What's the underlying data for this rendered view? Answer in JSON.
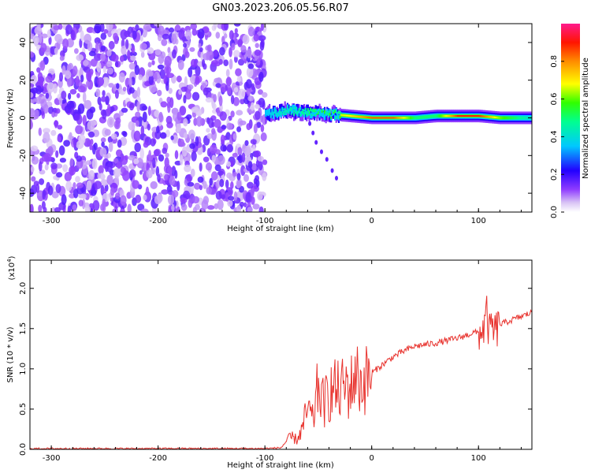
{
  "title": "GN03.2023.206.05.56.R07",
  "chart_data": [
    {
      "type": "heatmap",
      "title": "",
      "xlabel": "Height of straight line (km)",
      "ylabel": "Frequency (Hz)",
      "xlim": [
        -320,
        150
      ],
      "ylim": [
        -50,
        50
      ],
      "xticks": [
        "-300",
        "-200",
        "-100",
        "0",
        "100"
      ],
      "yticks": [
        "-40",
        "-20",
        "0",
        "20",
        "40"
      ],
      "noise_region_x": [
        -320,
        -100
      ],
      "signal_ridge": {
        "x": [
          -100,
          -80,
          -60,
          -40,
          -20,
          0,
          20,
          40,
          60,
          80,
          100,
          120,
          150
        ],
        "frequency_hz": [
          2,
          4,
          3,
          2,
          1,
          0,
          0,
          0,
          1,
          1,
          1,
          0,
          0
        ],
        "normalized_amplitude": [
          0.35,
          0.45,
          0.5,
          0.6,
          0.7,
          0.85,
          0.85,
          0.5,
          0.5,
          0.9,
          0.9,
          0.6,
          0.4
        ]
      },
      "colorbar": {
        "label": "Normalized spectral amplitude",
        "range": [
          0,
          1
        ],
        "ticks": [
          "0.0",
          "0.2",
          "0.4",
          "0.6",
          "0.8"
        ],
        "colormap": [
          "#ffffff",
          "#b58cf0",
          "#6a00ff",
          "#0000ff",
          "#00e5ff",
          "#00ff40",
          "#ffff00",
          "#ff8000",
          "#ff0000",
          "#ff1a8c"
        ]
      }
    },
    {
      "type": "line",
      "title": "",
      "xlabel": "Height of straight line (km)",
      "ylabel": "SNR (10 * v/v)",
      "y_multiplier": "(x10",
      "y_multiplier_exp": "4",
      "y_multiplier_close": ")",
      "xlim": [
        -320,
        150
      ],
      "ylim": [
        0,
        2.35
      ],
      "xticks": [
        "-300",
        "-200",
        "-100",
        "0",
        "100"
      ],
      "yticks": [
        "0.0",
        "0.5",
        "1.0",
        "1.5",
        "2.0"
      ],
      "color": "#e8322d",
      "series": [
        {
          "x": [
            -320,
            -100,
            -85,
            -80,
            -75,
            -70,
            -65,
            -60,
            -55,
            -50,
            -45,
            -40,
            -35,
            -30,
            -25,
            -20,
            -15,
            -10,
            -5,
            0,
            10,
            20,
            30,
            40,
            50,
            60,
            70,
            80,
            85,
            90,
            95,
            100,
            105,
            108,
            110,
            112,
            115,
            120,
            130,
            140,
            150
          ],
          "y": [
            0.01,
            0.01,
            0.02,
            0.1,
            0.15,
            0.12,
            0.25,
            0.5,
            0.35,
            0.8,
            0.55,
            0.7,
            0.75,
            0.7,
            0.8,
            0.75,
            0.95,
            0.8,
            0.88,
            0.95,
            1.05,
            1.15,
            1.22,
            1.28,
            1.3,
            1.32,
            1.35,
            1.38,
            1.4,
            1.42,
            1.45,
            1.45,
            1.5,
            1.7,
            1.4,
            1.55,
            1.45,
            1.55,
            1.6,
            1.65,
            1.7
          ]
        }
      ]
    }
  ]
}
